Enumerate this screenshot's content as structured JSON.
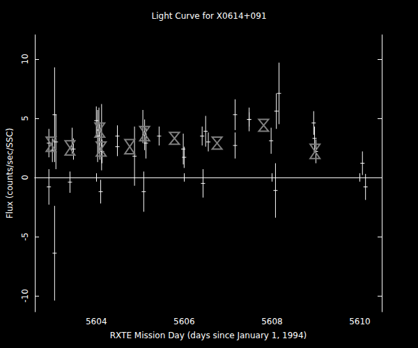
{
  "chart_data": {
    "type": "scatter",
    "title": "Light Curve for X0614+091",
    "x_label": "RXTE Mission Day (days since January 1, 1994)",
    "y_label": "Flux (counts/sec/SSC)",
    "xlim": [
      5602.6,
      5610.5
    ],
    "xticks": [
      5604,
      5606,
      5608,
      5610
    ],
    "ylim": [
      -11.35,
      12.05
    ],
    "yticks": [
      -10,
      -5,
      0,
      5,
      10
    ],
    "grid": false,
    "series": [
      {
        "color": "#ffffff",
        "marker": "dash",
        "x": [
          5602.92,
          5602.92,
          5603.0,
          5603.05,
          5603.05,
          5603.08,
          5603.4,
          5603.45,
          5603.48,
          5604.0,
          5604.03,
          5604.06,
          5604.08,
          5604.1,
          5604.12,
          5604.13,
          5604.48,
          5604.48,
          5604.87,
          5605.06,
          5605.08,
          5605.1,
          5605.13,
          5605.43,
          5605.98,
          5606.0,
          5606.41,
          5606.43,
          5606.49,
          5606.55,
          5607.16,
          5607.16,
          5607.48,
          5607.48,
          5607.98,
          5608.08,
          5608.1,
          5608.16,
          5608.95,
          5608.97,
          5609.0,
          5610.06,
          5610.13
        ],
        "values": [
          -0.8,
          2.9,
          2.3,
          5.3,
          -6.4,
          3.0,
          -0.4,
          3.1,
          2.4,
          4.8,
          3.5,
          4.0,
          3.0,
          -1.2,
          3.4,
          2.2,
          3.5,
          2.6,
          1.8,
          4.3,
          -1.2,
          3.6,
          2.9,
          3.5,
          2.4,
          1.7,
          3.5,
          -0.5,
          3.9,
          3.0,
          5.3,
          2.7,
          4.9,
          4.9,
          3.1,
          -1.1,
          5.6,
          7.1,
          4.6,
          3.3,
          2.2,
          1.2,
          -0.8
        ],
        "errors": [
          1.5,
          1.2,
          1.0,
          4.0,
          4.0,
          2.3,
          0.9,
          1.1,
          0.9,
          1.2,
          2.2,
          1.9,
          1.5,
          1.0,
          2.8,
          1.0,
          0.9,
          0.8,
          2.5,
          1.4,
          1.7,
          1.3,
          1.3,
          0.8,
          1.3,
          0.9,
          0.8,
          1.2,
          1.3,
          0.8,
          1.3,
          1.1,
          0.6,
          1.0,
          1.1,
          2.3,
          1.5,
          2.6,
          1.0,
          1.0,
          1.0,
          1.0,
          1.1
        ]
      },
      {
        "color": "#808080",
        "marker": "hourglass",
        "x": [
          5602.97,
          5603.4,
          5604.08,
          5604.11,
          5604.76,
          5605.1,
          5605.78,
          5606.75,
          5607.81,
          5608.98
        ],
        "values": [
          2.8,
          2.5,
          4.0,
          2.4,
          2.6,
          3.7,
          3.3,
          2.9,
          4.4,
          2.2
        ],
        "errors": [
          0.6,
          0.6,
          0.6,
          0.6,
          0.6,
          0.6,
          0.5,
          0.5,
          0.5,
          0.6
        ]
      }
    ]
  }
}
